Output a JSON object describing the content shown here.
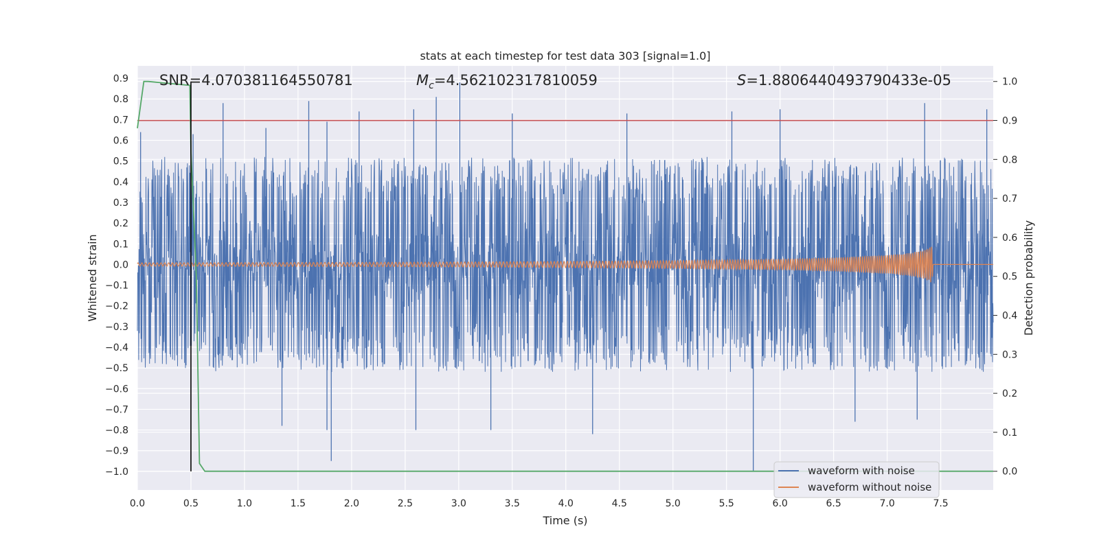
{
  "chart_data": {
    "type": "line",
    "title": "stats at each timestep for test data 303 [signal=1.0]",
    "xlabel": "Time (s)",
    "ylabel": "Whitened strain",
    "ylabel_right": "Detection probability",
    "xlim": [
      0.0,
      7.99
    ],
    "ylim": [
      -1.09,
      0.96
    ],
    "ylim_right": [
      -0.048,
      1.04
    ],
    "x_ticks": [
      "0.0",
      "0.5",
      "1.0",
      "1.5",
      "2.0",
      "2.5",
      "3.0",
      "3.5",
      "4.0",
      "4.5",
      "5.0",
      "5.5",
      "6.0",
      "6.5",
      "7.0",
      "7.5"
    ],
    "y_ticks": [
      "0.9",
      "0.8",
      "0.7",
      "0.6",
      "0.5",
      "0.4",
      "0.3",
      "0.2",
      "0.1",
      "0.0",
      "−0.1",
      "−0.2",
      "−0.3",
      "−0.4",
      "−0.5",
      "−0.6",
      "−0.7",
      "−0.8",
      "−0.9",
      "−1.0"
    ],
    "y_right_ticks": [
      "1.0",
      "0.9",
      "0.8",
      "0.7",
      "0.6",
      "0.5",
      "0.4",
      "0.3",
      "0.2",
      "0.1",
      "0.0"
    ],
    "grid": true,
    "legend_position": "lower-right",
    "annotations": {
      "snr": "SNR=4.070381164550781",
      "mc_symbol": "M",
      "mc_sub": "c",
      "mc_value": "=4.562102317810059",
      "s_symbol": "S",
      "s_value": "=1.8806440493790433e-05"
    },
    "series": [
      {
        "name": "waveform with noise",
        "color": "#4c72b0",
        "axis": "left",
        "description": "dense whitened noise, mostly within ±0.35 with spikes",
        "peaks": [
          {
            "x": 0.03,
            "y": 0.64
          },
          {
            "x": 0.52,
            "y": 0.63
          },
          {
            "x": 0.8,
            "y": 0.78
          },
          {
            "x": 1.2,
            "y": 0.66
          },
          {
            "x": 1.6,
            "y": 0.79
          },
          {
            "x": 1.77,
            "y": 0.69
          },
          {
            "x": 2.07,
            "y": 0.74
          },
          {
            "x": 2.58,
            "y": 0.75
          },
          {
            "x": 2.79,
            "y": 0.81
          },
          {
            "x": 3.01,
            "y": 0.88
          },
          {
            "x": 3.5,
            "y": 0.73
          },
          {
            "x": 4.57,
            "y": 0.73
          },
          {
            "x": 5.55,
            "y": 0.74
          },
          {
            "x": 6.0,
            "y": 0.75
          },
          {
            "x": 7.35,
            "y": 0.78
          },
          {
            "x": 7.93,
            "y": 0.75
          }
        ],
        "troughs": [
          {
            "x": 1.35,
            "y": -0.78
          },
          {
            "x": 1.77,
            "y": -0.8
          },
          {
            "x": 1.81,
            "y": -0.95
          },
          {
            "x": 2.6,
            "y": -0.8
          },
          {
            "x": 3.3,
            "y": -0.8
          },
          {
            "x": 4.25,
            "y": -0.82
          },
          {
            "x": 5.75,
            "y": -1.0
          },
          {
            "x": 6.7,
            "y": -0.76
          },
          {
            "x": 7.28,
            "y": -0.75
          }
        ]
      },
      {
        "name": "waveform without noise",
        "color": "#dd8452",
        "axis": "left",
        "description": "chirp, amplitude grows to ~0.09 near t=7.42 then drops to 0",
        "envelope": [
          [
            0.0,
            0.008
          ],
          [
            1.0,
            0.009
          ],
          [
            2.0,
            0.01
          ],
          [
            3.0,
            0.012
          ],
          [
            4.0,
            0.015
          ],
          [
            5.0,
            0.019
          ],
          [
            6.0,
            0.026
          ],
          [
            6.5,
            0.033
          ],
          [
            7.0,
            0.045
          ],
          [
            7.2,
            0.055
          ],
          [
            7.35,
            0.07
          ],
          [
            7.42,
            0.09
          ],
          [
            7.43,
            0.0
          ],
          [
            7.99,
            0.0
          ]
        ]
      },
      {
        "name": "detection probability",
        "color": "#55a868",
        "axis": "right",
        "x": [
          0.0,
          0.06,
          0.1,
          0.49,
          0.5,
          0.55,
          0.58,
          0.63,
          7.99
        ],
        "y": [
          0.88,
          1.0,
          1.0,
          0.99,
          0.82,
          0.5,
          0.02,
          0.0,
          0.0
        ]
      }
    ],
    "threshold_line": {
      "y_right": 0.9,
      "color": "#c44e52"
    },
    "vertical_line": {
      "x": 0.5,
      "color": "#000000"
    }
  }
}
